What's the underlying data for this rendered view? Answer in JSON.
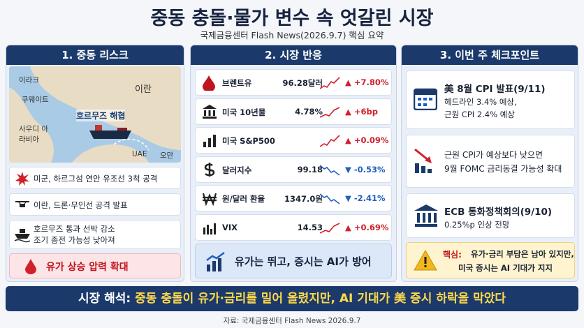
{
  "header": {
    "title": "중동 충돌·물가 변수 속 엇갈린 시장",
    "subtitle": "국제금융센터 Flash News(2026.9.7) 핵심 요약"
  },
  "panels": [
    {
      "heading": "1. 중동 리스크",
      "map_labels": [
        "이라크",
        "이란",
        "쿠웨이트",
        "호르무즈 해협",
        "사우디 아라비아",
        "UAE",
        "오만"
      ],
      "items": [
        [
          "미군, 하르그섬 연안 유조선 3척 공격"
        ],
        [
          "이란, 드론·무인선 공격 발표"
        ],
        [
          "호르무즈 통과 선박 감소",
          "조기 종전 가능성 낮아져"
        ]
      ],
      "conclusion": "유가 상승 압력 확대"
    },
    {
      "heading": "2. 시장 반응",
      "rows": [
        {
          "name": "브렌트유",
          "value": "96.28달러",
          "change": "▲ +7.80%"
        },
        {
          "name": "미국 10년물",
          "value": "4.78%",
          "change": "▲ +6bp"
        },
        {
          "name": "미국 S&P500",
          "change": "▲ +0.09%"
        },
        {
          "name": "달러지수",
          "value": "99.18",
          "change": "▼ -0.53%"
        },
        {
          "name": "원/달러 환율",
          "value": "1347.0원",
          "change": "▼ -2.41%"
        },
        {
          "name": "VIX",
          "value": "14.53",
          "change": "▲ +0.69%"
        }
      ],
      "conclusion": "유가는 뛰고, 증시는 AI가 방어"
    },
    {
      "heading": "3. 이번 주 체크포인트",
      "cards": [
        {
          "title": "美 8월 CPI 발표(9/11)",
          "lines": [
            "헤드라인 3.4% 예상,",
            "근원 CPI 2.4% 예상"
          ]
        },
        {
          "lines": [
            "근원 CPI가 예상보다 낮으면",
            "9월 FOMC 금리동결 가능성 확대"
          ]
        },
        {
          "title": "ECB 통화정책회의(9/10)",
          "lines": [
            "0.25%p 인상 전망"
          ]
        }
      ],
      "key_label": "핵심:",
      "key_lines": [
        "유가·금리 부담은 남아 있지만,",
        "미국 증시는 AI 기대가 지지"
      ]
    }
  ],
  "footer": {
    "label": "시장 해석:",
    "text": "중동 충돌이 유가·금리를 밀어 올렸지만, AI 기대가 美 증시 하락을 막았다",
    "source": "자료: 국제금융센터 Flash News 2026.9.7"
  }
}
